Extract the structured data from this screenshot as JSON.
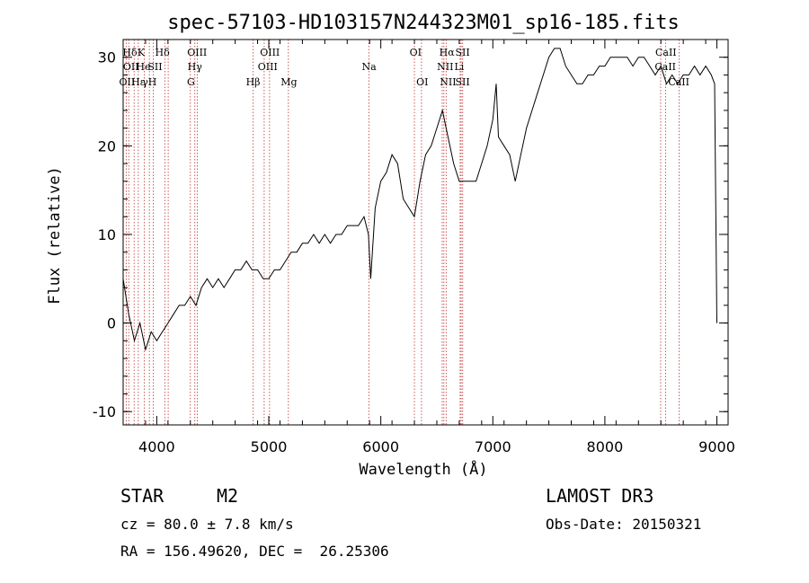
{
  "info": {
    "object_class": "STAR",
    "subclass": "M2",
    "survey": "LAMOST DR3",
    "cz": "cz = 80.0 ± 7.8 km/s",
    "obs_date": "Obs-Date: 20150321",
    "coords": "RA = 156.49620, DEC =  26.25306"
  },
  "chart_data": {
    "type": "line",
    "title": "spec-57103-HD103157N244323M01_sp16-185.fits",
    "xlabel": "Wavelength (Å)",
    "ylabel": "Flux (relative)",
    "xlim": [
      3700,
      9100
    ],
    "ylim": [
      -11.5,
      32
    ],
    "x_ticks": [
      4000,
      5000,
      6000,
      7000,
      8000,
      9000
    ],
    "y_ticks": [
      -10,
      0,
      10,
      20,
      30
    ],
    "grid": false,
    "series": [
      {
        "color": "#000000",
        "x": [
          3700,
          3750,
          3800,
          3850,
          3900,
          3950,
          4000,
          4050,
          4100,
          4150,
          4200,
          4250,
          4300,
          4350,
          4400,
          4450,
          4500,
          4550,
          4600,
          4650,
          4700,
          4750,
          4800,
          4850,
          4900,
          4950,
          5000,
          5050,
          5100,
          5150,
          5200,
          5250,
          5300,
          5350,
          5400,
          5450,
          5500,
          5550,
          5600,
          5650,
          5700,
          5750,
          5800,
          5850,
          5890,
          5910,
          5950,
          6000,
          6050,
          6100,
          6150,
          6200,
          6250,
          6300,
          6350,
          6400,
          6450,
          6500,
          6550,
          6600,
          6650,
          6700,
          6750,
          6800,
          6850,
          6900,
          6950,
          7000,
          7030,
          7050,
          7100,
          7150,
          7200,
          7250,
          7300,
          7350,
          7400,
          7450,
          7500,
          7550,
          7600,
          7650,
          7700,
          7750,
          7800,
          7850,
          7900,
          7950,
          8000,
          8050,
          8100,
          8150,
          8200,
          8250,
          8300,
          8350,
          8400,
          8450,
          8500,
          8550,
          8600,
          8650,
          8700,
          8750,
          8800,
          8850,
          8900,
          8950,
          8980,
          9000
        ],
        "y": [
          5,
          1,
          -2,
          0,
          -3,
          -1,
          -2,
          -1,
          0,
          1,
          2,
          2,
          3,
          2,
          4,
          5,
          4,
          5,
          4,
          5,
          6,
          6,
          7,
          6,
          6,
          5,
          5,
          6,
          6,
          7,
          8,
          8,
          9,
          9,
          10,
          9,
          10,
          9,
          10,
          10,
          11,
          11,
          11,
          12,
          10,
          5,
          13,
          16,
          17,
          19,
          18,
          14,
          13,
          12,
          16,
          19,
          20,
          22,
          24,
          21,
          18,
          16,
          16,
          16,
          16,
          18,
          20,
          23,
          27,
          21,
          20,
          19,
          16,
          19,
          22,
          24,
          26,
          28,
          30,
          31,
          31,
          29,
          28,
          27,
          27,
          28,
          28,
          29,
          29,
          30,
          30,
          30,
          30,
          29,
          30,
          30,
          29,
          28,
          29,
          27,
          28,
          27,
          28,
          28,
          29,
          28,
          29,
          28,
          27,
          0
        ]
      }
    ],
    "annotations": {
      "row1": [
        {
          "x": 3760,
          "label": "Hδ"
        },
        {
          "x": 3860,
          "label": "K"
        },
        {
          "x": 4050,
          "label": "Hδ"
        },
        {
          "x": 4360,
          "label": "OIII"
        },
        {
          "x": 5010,
          "label": "OIII"
        },
        {
          "x": 6310,
          "label": "OI"
        },
        {
          "x": 6590,
          "label": "Hα"
        },
        {
          "x": 6730,
          "label": "SII"
        },
        {
          "x": 8545,
          "label": "CaII"
        }
      ],
      "row2": [
        {
          "x": 3770,
          "label": "OII"
        },
        {
          "x": 3880,
          "label": "He"
        },
        {
          "x": 3985,
          "label": "SII"
        },
        {
          "x": 4340,
          "label": "Hγ"
        },
        {
          "x": 4990,
          "label": "OIII"
        },
        {
          "x": 5895,
          "label": "Na"
        },
        {
          "x": 6575,
          "label": "NII"
        },
        {
          "x": 6700,
          "label": "Li"
        },
        {
          "x": 8540,
          "label": "CaII"
        }
      ],
      "row3": [
        {
          "x": 3735,
          "label": "OII"
        },
        {
          "x": 3835,
          "label": "Hε"
        },
        {
          "x": 3935,
          "label": "γH"
        },
        {
          "x": 4305,
          "label": "G"
        },
        {
          "x": 4860,
          "label": "Hβ"
        },
        {
          "x": 5180,
          "label": "Mg"
        },
        {
          "x": 6370,
          "label": "OI"
        },
        {
          "x": 6600,
          "label": "NII"
        },
        {
          "x": 6730,
          "label": "SII"
        },
        {
          "x": 8660,
          "label": "CaII"
        }
      ]
    },
    "reference_lines": [
      3727,
      3750,
      3798,
      3835,
      3889,
      3934,
      3968,
      4072,
      4102,
      4300,
      4340,
      4363,
      4861,
      4959,
      5007,
      5175,
      5893,
      6300,
      6363,
      6548,
      6563,
      6583,
      6708,
      6717,
      6731,
      8498,
      8542,
      8662
    ],
    "reference_line_color": "#c03030"
  }
}
